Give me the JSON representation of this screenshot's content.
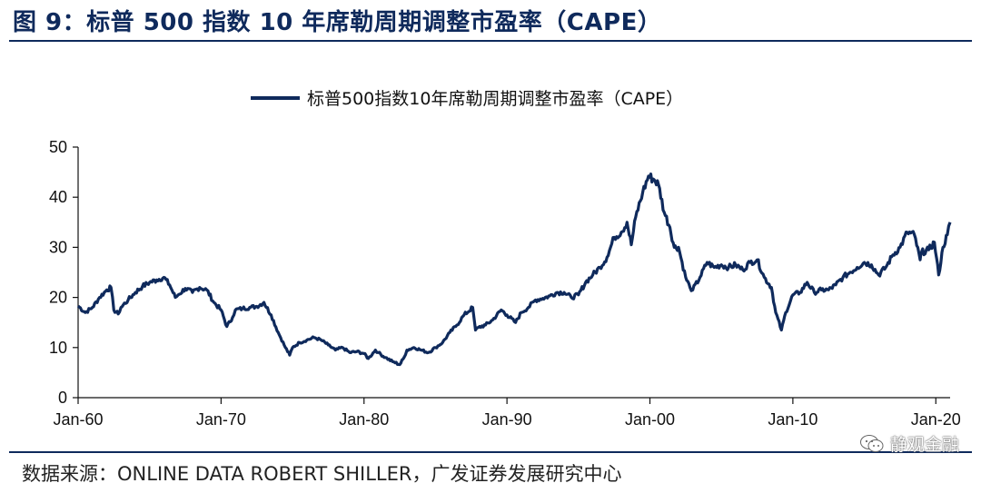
{
  "figure": {
    "title": "图 9：标普 500 指数 10 年席勒周期调整市盈率（CAPE）",
    "source": "数据来源：ONLINE DATA ROBERT SHILLER，广发证券发展研究中心",
    "watermark": "静观金融"
  },
  "colors": {
    "series": "#0f2a5c",
    "accent": "#0f2a5c"
  },
  "chart_data": {
    "type": "line",
    "legend_position": "top-center",
    "grid": false,
    "ylim": [
      0,
      50
    ],
    "yticks": [
      0,
      10,
      20,
      30,
      40,
      50
    ],
    "xlim": [
      1960,
      2021
    ],
    "xticks": [
      {
        "value": 1960,
        "label": "Jan-60"
      },
      {
        "value": 1970,
        "label": "Jan-70"
      },
      {
        "value": 1980,
        "label": "Jan-80"
      },
      {
        "value": 1990,
        "label": "Jan-90"
      },
      {
        "value": 2000,
        "label": "Jan-00"
      },
      {
        "value": 2010,
        "label": "Jan-10"
      },
      {
        "value": 2020,
        "label": "Jan-20"
      }
    ],
    "series": [
      {
        "name": "标普500指数10年席勒周期调整市盈率（CAPE）",
        "points": [
          [
            1960.0,
            18.3
          ],
          [
            1960.5,
            17.0
          ],
          [
            1961.0,
            18.0
          ],
          [
            1961.5,
            20.0
          ],
          [
            1962.0,
            21.5
          ],
          [
            1962.3,
            22.0
          ],
          [
            1962.5,
            17.5
          ],
          [
            1962.8,
            16.7
          ],
          [
            1963.0,
            18.0
          ],
          [
            1963.5,
            19.5
          ],
          [
            1964.0,
            21.0
          ],
          [
            1964.5,
            22.2
          ],
          [
            1965.0,
            23.0
          ],
          [
            1965.5,
            23.5
          ],
          [
            1966.0,
            24.0
          ],
          [
            1966.4,
            22.5
          ],
          [
            1966.8,
            20.0
          ],
          [
            1967.0,
            20.5
          ],
          [
            1967.5,
            21.8
          ],
          [
            1968.0,
            21.0
          ],
          [
            1968.5,
            22.0
          ],
          [
            1969.0,
            21.5
          ],
          [
            1969.5,
            19.0
          ],
          [
            1970.0,
            17.5
          ],
          [
            1970.4,
            14.2
          ],
          [
            1970.8,
            16.0
          ],
          [
            1971.0,
            17.5
          ],
          [
            1971.5,
            17.8
          ],
          [
            1972.0,
            18.0
          ],
          [
            1972.5,
            18.2
          ],
          [
            1973.0,
            19.0
          ],
          [
            1973.5,
            16.5
          ],
          [
            1974.0,
            13.0
          ],
          [
            1974.5,
            10.0
          ],
          [
            1974.8,
            8.5
          ],
          [
            1975.0,
            10.0
          ],
          [
            1975.5,
            11.0
          ],
          [
            1976.0,
            11.5
          ],
          [
            1976.5,
            12.0
          ],
          [
            1977.0,
            11.5
          ],
          [
            1977.5,
            10.5
          ],
          [
            1978.0,
            9.5
          ],
          [
            1978.5,
            10.0
          ],
          [
            1979.0,
            9.0
          ],
          [
            1979.5,
            9.2
          ],
          [
            1980.0,
            8.8
          ],
          [
            1980.3,
            7.8
          ],
          [
            1980.8,
            9.5
          ],
          [
            1981.0,
            9.0
          ],
          [
            1981.5,
            8.0
          ],
          [
            1982.0,
            7.2
          ],
          [
            1982.5,
            6.6
          ],
          [
            1982.8,
            8.0
          ],
          [
            1983.0,
            9.5
          ],
          [
            1983.5,
            10.0
          ],
          [
            1984.0,
            9.5
          ],
          [
            1984.5,
            9.0
          ],
          [
            1985.0,
            10.0
          ],
          [
            1985.5,
            11.0
          ],
          [
            1986.0,
            13.0
          ],
          [
            1986.5,
            14.5
          ],
          [
            1987.0,
            16.5
          ],
          [
            1987.6,
            18.0
          ],
          [
            1987.8,
            13.5
          ],
          [
            1988.0,
            14.0
          ],
          [
            1988.5,
            14.5
          ],
          [
            1989.0,
            15.5
          ],
          [
            1989.6,
            17.5
          ],
          [
            1990.0,
            16.5
          ],
          [
            1990.6,
            15.0
          ],
          [
            1991.0,
            17.0
          ],
          [
            1991.5,
            18.0
          ],
          [
            1992.0,
            19.5
          ],
          [
            1992.5,
            19.8
          ],
          [
            1993.0,
            20.3
          ],
          [
            1993.5,
            21.0
          ],
          [
            1994.0,
            21.0
          ],
          [
            1994.5,
            20.0
          ],
          [
            1995.0,
            20.5
          ],
          [
            1995.5,
            23.0
          ],
          [
            1996.0,
            24.5
          ],
          [
            1996.5,
            26.0
          ],
          [
            1997.0,
            28.0
          ],
          [
            1997.5,
            32.0
          ],
          [
            1998.0,
            33.0
          ],
          [
            1998.4,
            35.0
          ],
          [
            1998.7,
            30.5
          ],
          [
            1999.0,
            36.0
          ],
          [
            1999.5,
            41.0
          ],
          [
            1999.9,
            44.2
          ],
          [
            2000.3,
            43.5
          ],
          [
            2000.6,
            42.5
          ],
          [
            2001.0,
            37.0
          ],
          [
            2001.4,
            34.0
          ],
          [
            2001.7,
            30.0
          ],
          [
            2002.0,
            30.0
          ],
          [
            2002.5,
            24.0
          ],
          [
            2002.8,
            22.0
          ],
          [
            2003.0,
            21.5
          ],
          [
            2003.5,
            24.0
          ],
          [
            2004.0,
            27.0
          ],
          [
            2004.5,
            26.0
          ],
          [
            2005.0,
            26.5
          ],
          [
            2005.5,
            26.0
          ],
          [
            2006.0,
            26.5
          ],
          [
            2006.5,
            25.5
          ],
          [
            2007.0,
            27.0
          ],
          [
            2007.5,
            27.5
          ],
          [
            2008.0,
            24.0
          ],
          [
            2008.5,
            22.0
          ],
          [
            2008.8,
            17.0
          ],
          [
            2009.2,
            13.5
          ],
          [
            2009.5,
            17.0
          ],
          [
            2010.0,
            20.5
          ],
          [
            2010.5,
            21.0
          ],
          [
            2011.0,
            23.0
          ],
          [
            2011.5,
            21.0
          ],
          [
            2012.0,
            21.5
          ],
          [
            2012.5,
            21.5
          ],
          [
            2013.0,
            22.5
          ],
          [
            2013.5,
            24.0
          ],
          [
            2014.0,
            25.0
          ],
          [
            2014.5,
            26.0
          ],
          [
            2015.0,
            27.0
          ],
          [
            2015.5,
            26.5
          ],
          [
            2016.0,
            24.5
          ],
          [
            2016.5,
            26.0
          ],
          [
            2017.0,
            28.5
          ],
          [
            2017.5,
            30.0
          ],
          [
            2018.0,
            33.0
          ],
          [
            2018.5,
            32.5
          ],
          [
            2018.9,
            27.5
          ],
          [
            2019.0,
            29.0
          ],
          [
            2019.5,
            29.5
          ],
          [
            2019.9,
            31.0
          ],
          [
            2020.2,
            24.5
          ],
          [
            2020.5,
            30.0
          ],
          [
            2020.8,
            32.5
          ],
          [
            2021.0,
            35.0
          ]
        ]
      }
    ]
  }
}
